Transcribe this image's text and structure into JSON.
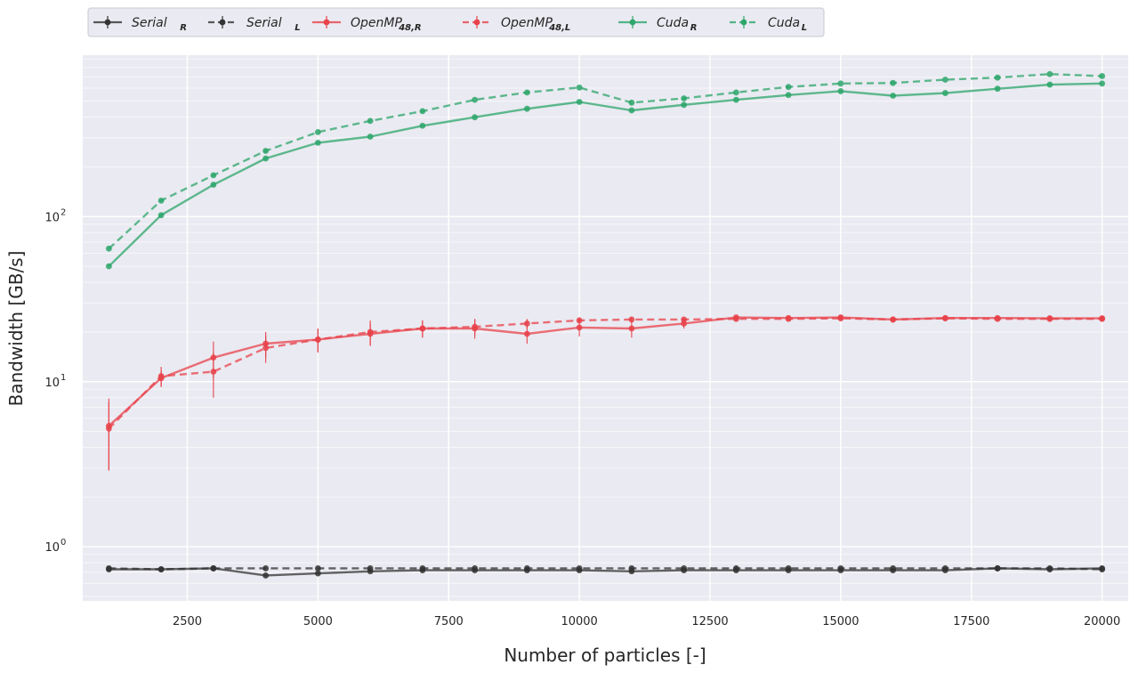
{
  "chart_data": {
    "type": "line",
    "xlabel": "Number of particles [-]",
    "ylabel": "Bandwidth [GB/s]",
    "yscale": "log",
    "xlim": [
      500,
      20500
    ],
    "ylim": [
      0.47,
      950
    ],
    "x_ticks": [
      2500,
      5000,
      7500,
      10000,
      12500,
      15000,
      17500,
      20000
    ],
    "y_ticks": [
      1,
      10,
      100
    ],
    "y_tick_labels": [
      {
        "base": "10",
        "exp": "0"
      },
      {
        "base": "10",
        "exp": "1"
      },
      {
        "base": "10",
        "exp": "2"
      }
    ],
    "grid": true,
    "legend_position": "top-left above plot",
    "x": [
      1000,
      2000,
      3000,
      4000,
      5000,
      6000,
      7000,
      8000,
      9000,
      10000,
      11000,
      12000,
      13000,
      14000,
      15000,
      16000,
      17000,
      18000,
      19000,
      20000
    ],
    "series": [
      {
        "name": "Serial",
        "sub": "R",
        "color": "#333333",
        "dash": false,
        "values": [
          0.73,
          0.73,
          0.74,
          0.67,
          0.69,
          0.71,
          0.72,
          0.72,
          0.72,
          0.72,
          0.71,
          0.72,
          0.72,
          0.72,
          0.72,
          0.72,
          0.72,
          0.74,
          0.73,
          0.74
        ],
        "err": [
          0.01,
          0.01,
          0.01,
          0.01,
          0.01,
          0.01,
          0.01,
          0.01,
          0.01,
          0.01,
          0.01,
          0.01,
          0.01,
          0.01,
          0.01,
          0.01,
          0.01,
          0.01,
          0.01,
          0.01
        ]
      },
      {
        "name": "Serial",
        "sub": "L",
        "color": "#333333",
        "dash": true,
        "values": [
          0.74,
          0.73,
          0.74,
          0.74,
          0.74,
          0.74,
          0.74,
          0.74,
          0.74,
          0.74,
          0.74,
          0.74,
          0.74,
          0.74,
          0.74,
          0.74,
          0.74,
          0.74,
          0.74,
          0.73
        ],
        "err": [
          0.01,
          0.01,
          0.01,
          0.01,
          0.01,
          0.01,
          0.01,
          0.01,
          0.01,
          0.01,
          0.01,
          0.01,
          0.01,
          0.01,
          0.01,
          0.01,
          0.01,
          0.01,
          0.01,
          0.01
        ]
      },
      {
        "name": "OpenMP",
        "sub": "48,R",
        "color": "#e8424a",
        "dash": false,
        "values": [
          5.4,
          10.5,
          14.0,
          17.0,
          18.0,
          19.5,
          21.0,
          21.0,
          19.5,
          21.3,
          21.0,
          22.5,
          24.5,
          24.3,
          24.5,
          23.8,
          24.3,
          24.3,
          24.2,
          24.2
        ],
        "err": [
          2.5,
          1.2,
          3.5,
          3.0,
          2.8,
          3.0,
          2.5,
          2.8,
          2.5,
          2.5,
          2.5,
          1.5,
          0.6,
          0.4,
          0.4,
          0.3,
          0.3,
          0.3,
          0.3,
          0.3
        ]
      },
      {
        "name": "OpenMP",
        "sub": "48,L",
        "color": "#e8424a",
        "dash": true,
        "values": [
          5.2,
          10.8,
          11.5,
          16.0,
          18.0,
          20.0,
          21.0,
          21.5,
          22.5,
          23.5,
          23.8,
          23.8,
          24.0,
          24.0,
          24.2,
          23.8,
          24.2,
          24.0,
          24.0,
          24.0
        ],
        "err": [
          2.3,
          1.5,
          3.5,
          3.0,
          3.0,
          3.5,
          2.5,
          2.5,
          1.5,
          1.0,
          0.8,
          0.5,
          0.4,
          0.4,
          0.4,
          0.3,
          0.3,
          0.3,
          0.3,
          0.3
        ]
      },
      {
        "name": "Cuda",
        "sub": "R",
        "color": "#2ca66a",
        "dash": false,
        "values": [
          50,
          102,
          156,
          225,
          280,
          305,
          355,
          400,
          450,
          495,
          440,
          475,
          510,
          545,
          575,
          540,
          560,
          595,
          630,
          640
        ],
        "err": [
          0,
          0,
          0,
          0,
          0,
          0,
          0,
          0,
          0,
          0,
          0,
          0,
          0,
          0,
          0,
          0,
          0,
          0,
          0,
          0
        ]
      },
      {
        "name": "Cuda",
        "sub": "L",
        "color": "#2ca66a",
        "dash": true,
        "values": [
          64,
          125,
          178,
          250,
          325,
          380,
          435,
          510,
          565,
          605,
          490,
          520,
          565,
          610,
          640,
          645,
          675,
          695,
          730,
          710
        ],
        "err": [
          0,
          0,
          0,
          0,
          0,
          0,
          0,
          0,
          0,
          0,
          0,
          0,
          0,
          0,
          0,
          0,
          0,
          0,
          0,
          0
        ]
      }
    ]
  }
}
